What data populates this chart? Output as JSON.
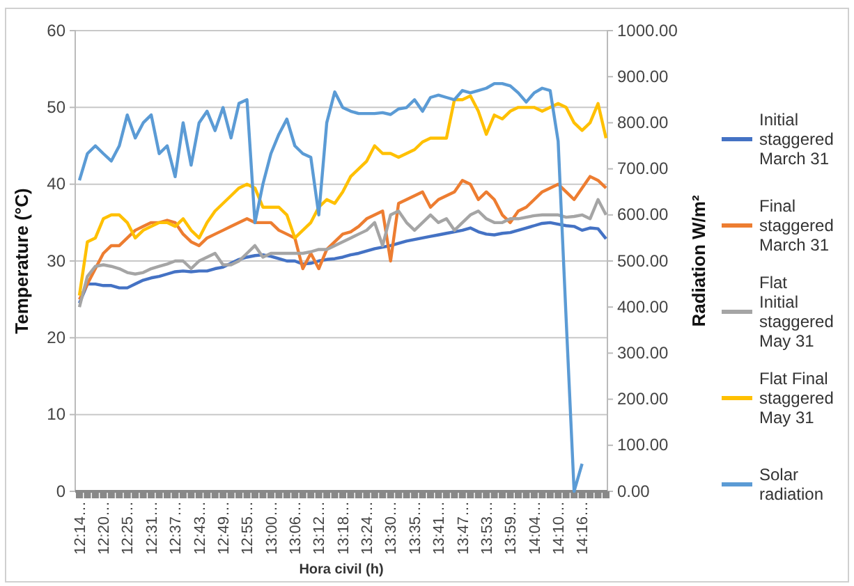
{
  "chart_data": {
    "type": "line",
    "xlabel": "Hora civil (h)",
    "ylabel": "Temperature  (°C)",
    "y2label": "Radiation W/m²",
    "categories": [
      "12:14…",
      null,
      null,
      "12:20…",
      null,
      null,
      "12:25…",
      null,
      null,
      "12:31…",
      null,
      null,
      "12:37…",
      null,
      null,
      "12:43…",
      null,
      null,
      "12:49…",
      null,
      null,
      "12:55…",
      null,
      null,
      "13:00…",
      null,
      null,
      "13:06…",
      null,
      null,
      "13:12…",
      null,
      null,
      "13:18…",
      null,
      null,
      "13:24…",
      null,
      null,
      "13:30…",
      null,
      null,
      "13:35…",
      null,
      null,
      "13:41…",
      null,
      null,
      "13:47…",
      null,
      null,
      "13:53…",
      null,
      null,
      "13:59…",
      null,
      null,
      "14:04…",
      null,
      null,
      "14:10…",
      null,
      null,
      "14:16…",
      null,
      null,
      null
    ],
    "ylim": [
      0,
      60
    ],
    "yticks": [
      0,
      10,
      20,
      30,
      40,
      50,
      60
    ],
    "y2lim": [
      0,
      1000
    ],
    "y2ticks": [
      {
        "value": 0,
        "label": "0.00"
      },
      {
        "value": 100,
        "label": "100.00"
      },
      {
        "value": 200,
        "label": "200.00"
      },
      {
        "value": 300,
        "label": "300.00"
      },
      {
        "value": 400,
        "label": "400.00"
      },
      {
        "value": 500,
        "label": "500.00"
      },
      {
        "value": 600,
        "label": "600.00"
      },
      {
        "value": 700,
        "label": "700.00"
      },
      {
        "value": 800,
        "label": "800.00"
      },
      {
        "value": 900,
        "label": "900.00"
      },
      {
        "value": 1000,
        "label": "1000.00"
      }
    ],
    "grid": "y",
    "legend": "right",
    "line_style": "solid",
    "marker": "none",
    "series": [
      {
        "name": "Initial staggered March 31",
        "color": "#4472c4",
        "values": [
          24.5,
          27,
          27,
          26.8,
          26.8,
          26.5,
          26.5,
          27,
          27.5,
          27.8,
          28,
          28.3,
          28.6,
          28.7,
          28.6,
          28.7,
          28.7,
          29,
          29.2,
          29.7,
          30.2,
          30.5,
          30.7,
          30.8,
          30.6,
          30.3,
          30,
          30,
          29.6,
          29.7,
          30,
          30.2,
          30.3,
          30.5,
          30.8,
          31,
          31.3,
          31.6,
          31.8,
          32,
          32.3,
          32.6,
          32.8,
          33,
          33.2,
          33.4,
          33.6,
          33.8,
          34,
          34.3,
          33.8,
          33.5,
          33.4,
          33.6,
          33.7,
          34,
          34.3,
          34.6,
          34.9,
          35,
          34.8,
          34.6,
          34.5,
          34,
          34.3,
          34.2,
          32.9
        ]
      },
      {
        "name": "Final staggered March 31",
        "color": "#ed7d31",
        "values": [
          25,
          27,
          29,
          31,
          32,
          32,
          33,
          34,
          34.5,
          35,
          35,
          35.3,
          35,
          33.5,
          32.5,
          32,
          33,
          33.5,
          34,
          34.5,
          35,
          35.5,
          35,
          35,
          35,
          34,
          33.5,
          33,
          29,
          31,
          29,
          31.5,
          32.5,
          33.5,
          33.8,
          34.5,
          35.5,
          36,
          36.5,
          30,
          37.5,
          38,
          38.5,
          39,
          37,
          38,
          38.5,
          39,
          40.5,
          40,
          38,
          39,
          38,
          36,
          35,
          36.5,
          37,
          38,
          39,
          39.5,
          40,
          39,
          38,
          39.5,
          41,
          40.5,
          39.5
        ]
      },
      {
        "name": "Flat Initial staggered May 31",
        "color": "#a5a5a5",
        "values": [
          24,
          28,
          29.3,
          29.5,
          29.3,
          29,
          28.5,
          28.3,
          28.5,
          29,
          29.3,
          29.6,
          30,
          30,
          29,
          30,
          30.5,
          31,
          29.5,
          29.5,
          30,
          31,
          32,
          30.5,
          31,
          31,
          31,
          31,
          31,
          31.2,
          31.5,
          31.5,
          32,
          32.5,
          33,
          33.5,
          34,
          35,
          32,
          36,
          36.5,
          35,
          34,
          35,
          36,
          35,
          35.5,
          34,
          35,
          36,
          36.5,
          35.5,
          35,
          35,
          35.5,
          35.5,
          35.7,
          35.9,
          36,
          36,
          36,
          35.7,
          35.8,
          36,
          35.5,
          38,
          36
        ]
      },
      {
        "name": "Flat Final staggered May 31",
        "color": "#ffc000",
        "values": [
          25.5,
          32.5,
          33,
          35.5,
          36,
          36,
          35,
          33,
          34,
          34.5,
          35,
          35,
          34.5,
          35.5,
          34,
          33,
          35,
          36.5,
          37.5,
          38.5,
          39.5,
          40,
          39.5,
          37,
          37,
          37,
          36,
          33,
          34,
          35,
          37,
          38,
          37.5,
          39,
          41,
          42,
          43,
          45,
          44,
          44,
          43.5,
          44,
          44.5,
          45.5,
          46,
          46,
          46,
          51,
          51,
          51.5,
          49.5,
          46.5,
          49,
          48.5,
          49.5,
          50,
          50,
          50,
          49.5,
          50,
          50.5,
          50,
          48,
          47,
          48,
          50.5,
          46
        ]
      },
      {
        "name": "Solar radiation",
        "color": "#5b9bd5",
        "axis": "y2",
        "values": [
          675,
          733,
          750,
          733,
          717,
          750,
          817,
          767,
          800,
          817,
          733,
          750,
          683,
          800,
          708,
          800,
          825,
          783,
          833,
          767,
          842,
          850,
          583,
          667,
          733,
          775,
          808,
          750,
          733,
          725,
          600,
          800,
          867,
          833,
          825,
          820,
          820,
          820,
          822,
          818,
          830,
          833,
          850,
          825,
          855,
          860,
          855,
          850,
          870,
          865,
          870,
          875,
          885,
          885,
          880,
          865,
          845,
          865,
          875,
          870,
          760,
          375,
          0,
          60,
          null,
          null,
          null
        ]
      }
    ]
  }
}
